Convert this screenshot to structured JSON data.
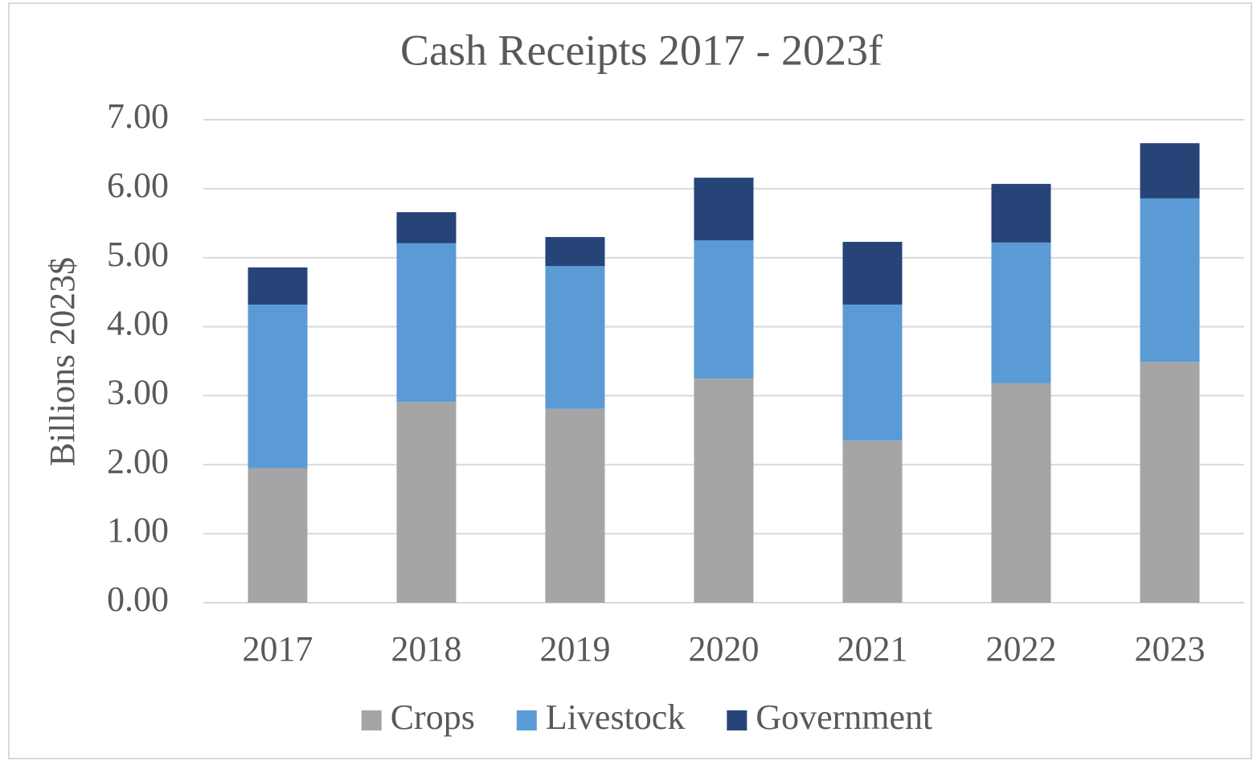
{
  "chart_data": {
    "type": "stacked_bar",
    "title": "Cash Receipts 2017 - 2023f",
    "y_label": "Billions 2023$",
    "categories": [
      "2017",
      "2018",
      "2019",
      "2020",
      "2021",
      "2022",
      "2023"
    ],
    "series": [
      {
        "name": "Crops",
        "color": "#a5a5a5",
        "values": [
          1.95,
          2.91,
          2.81,
          3.25,
          2.35,
          3.18,
          3.49
        ]
      },
      {
        "name": "Livestock",
        "color": "#5b9bd5",
        "values": [
          2.37,
          2.3,
          2.07,
          2.0,
          1.97,
          2.04,
          2.37
        ]
      },
      {
        "name": "Government",
        "color": "#264478",
        "values": [
          0.54,
          0.45,
          0.42,
          0.91,
          0.91,
          0.85,
          0.8
        ]
      }
    ],
    "ylim": [
      0,
      7
    ],
    "yticks": [
      {
        "value": 0,
        "label": "0.00"
      },
      {
        "value": 1,
        "label": "1.00"
      },
      {
        "value": 2,
        "label": "2.00"
      },
      {
        "value": 3,
        "label": "3.00"
      },
      {
        "value": 4,
        "label": "4.00"
      },
      {
        "value": 5,
        "label": "5.00"
      },
      {
        "value": 6,
        "label": "6.00"
      },
      {
        "value": 7,
        "label": "7.00"
      }
    ],
    "grid": true,
    "legend": "bottom"
  }
}
